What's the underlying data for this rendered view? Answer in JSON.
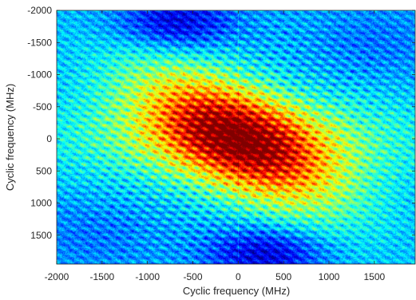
{
  "chart_data": {
    "type": "heatmap",
    "title": "",
    "xlabel": "Cyclic frequency (MHz)",
    "ylabel": "Cyclic frequency (MHz)",
    "xlim": [
      -2000,
      1950
    ],
    "ylim": [
      -2000,
      1950
    ],
    "y_axis_direction": "down",
    "x_ticks": [
      -2000,
      -1500,
      -1000,
      -500,
      0,
      500,
      1000,
      1500
    ],
    "y_ticks": [
      -2000,
      -1500,
      -1000,
      -500,
      0,
      500,
      1000,
      1500
    ],
    "x_tick_labels": [
      "-2000",
      "-1500",
      "-1000",
      "-500",
      "0",
      "500",
      "1000",
      "1500"
    ],
    "y_tick_labels": [
      "-2000",
      "-1500",
      "-1000",
      "-500",
      "0",
      "500",
      "1000",
      "1500"
    ],
    "colormap": "jet",
    "colorbar": false,
    "grid": false,
    "description_of_structure": {
      "peak_location": [
        0,
        0
      ],
      "peak_level": 1.0,
      "background_level": 0.3,
      "main_ridge": "high magnitude along the x = y diagonal, strongest near the origin",
      "stripes": "diagonal bands parallel to x = y and horizontal bands across the centre",
      "low_regions": "blue lobes near (-700, -1800) and (300, 1800)",
      "center_lines": "thin bright lines at x = 0 and y = 0"
    }
  }
}
